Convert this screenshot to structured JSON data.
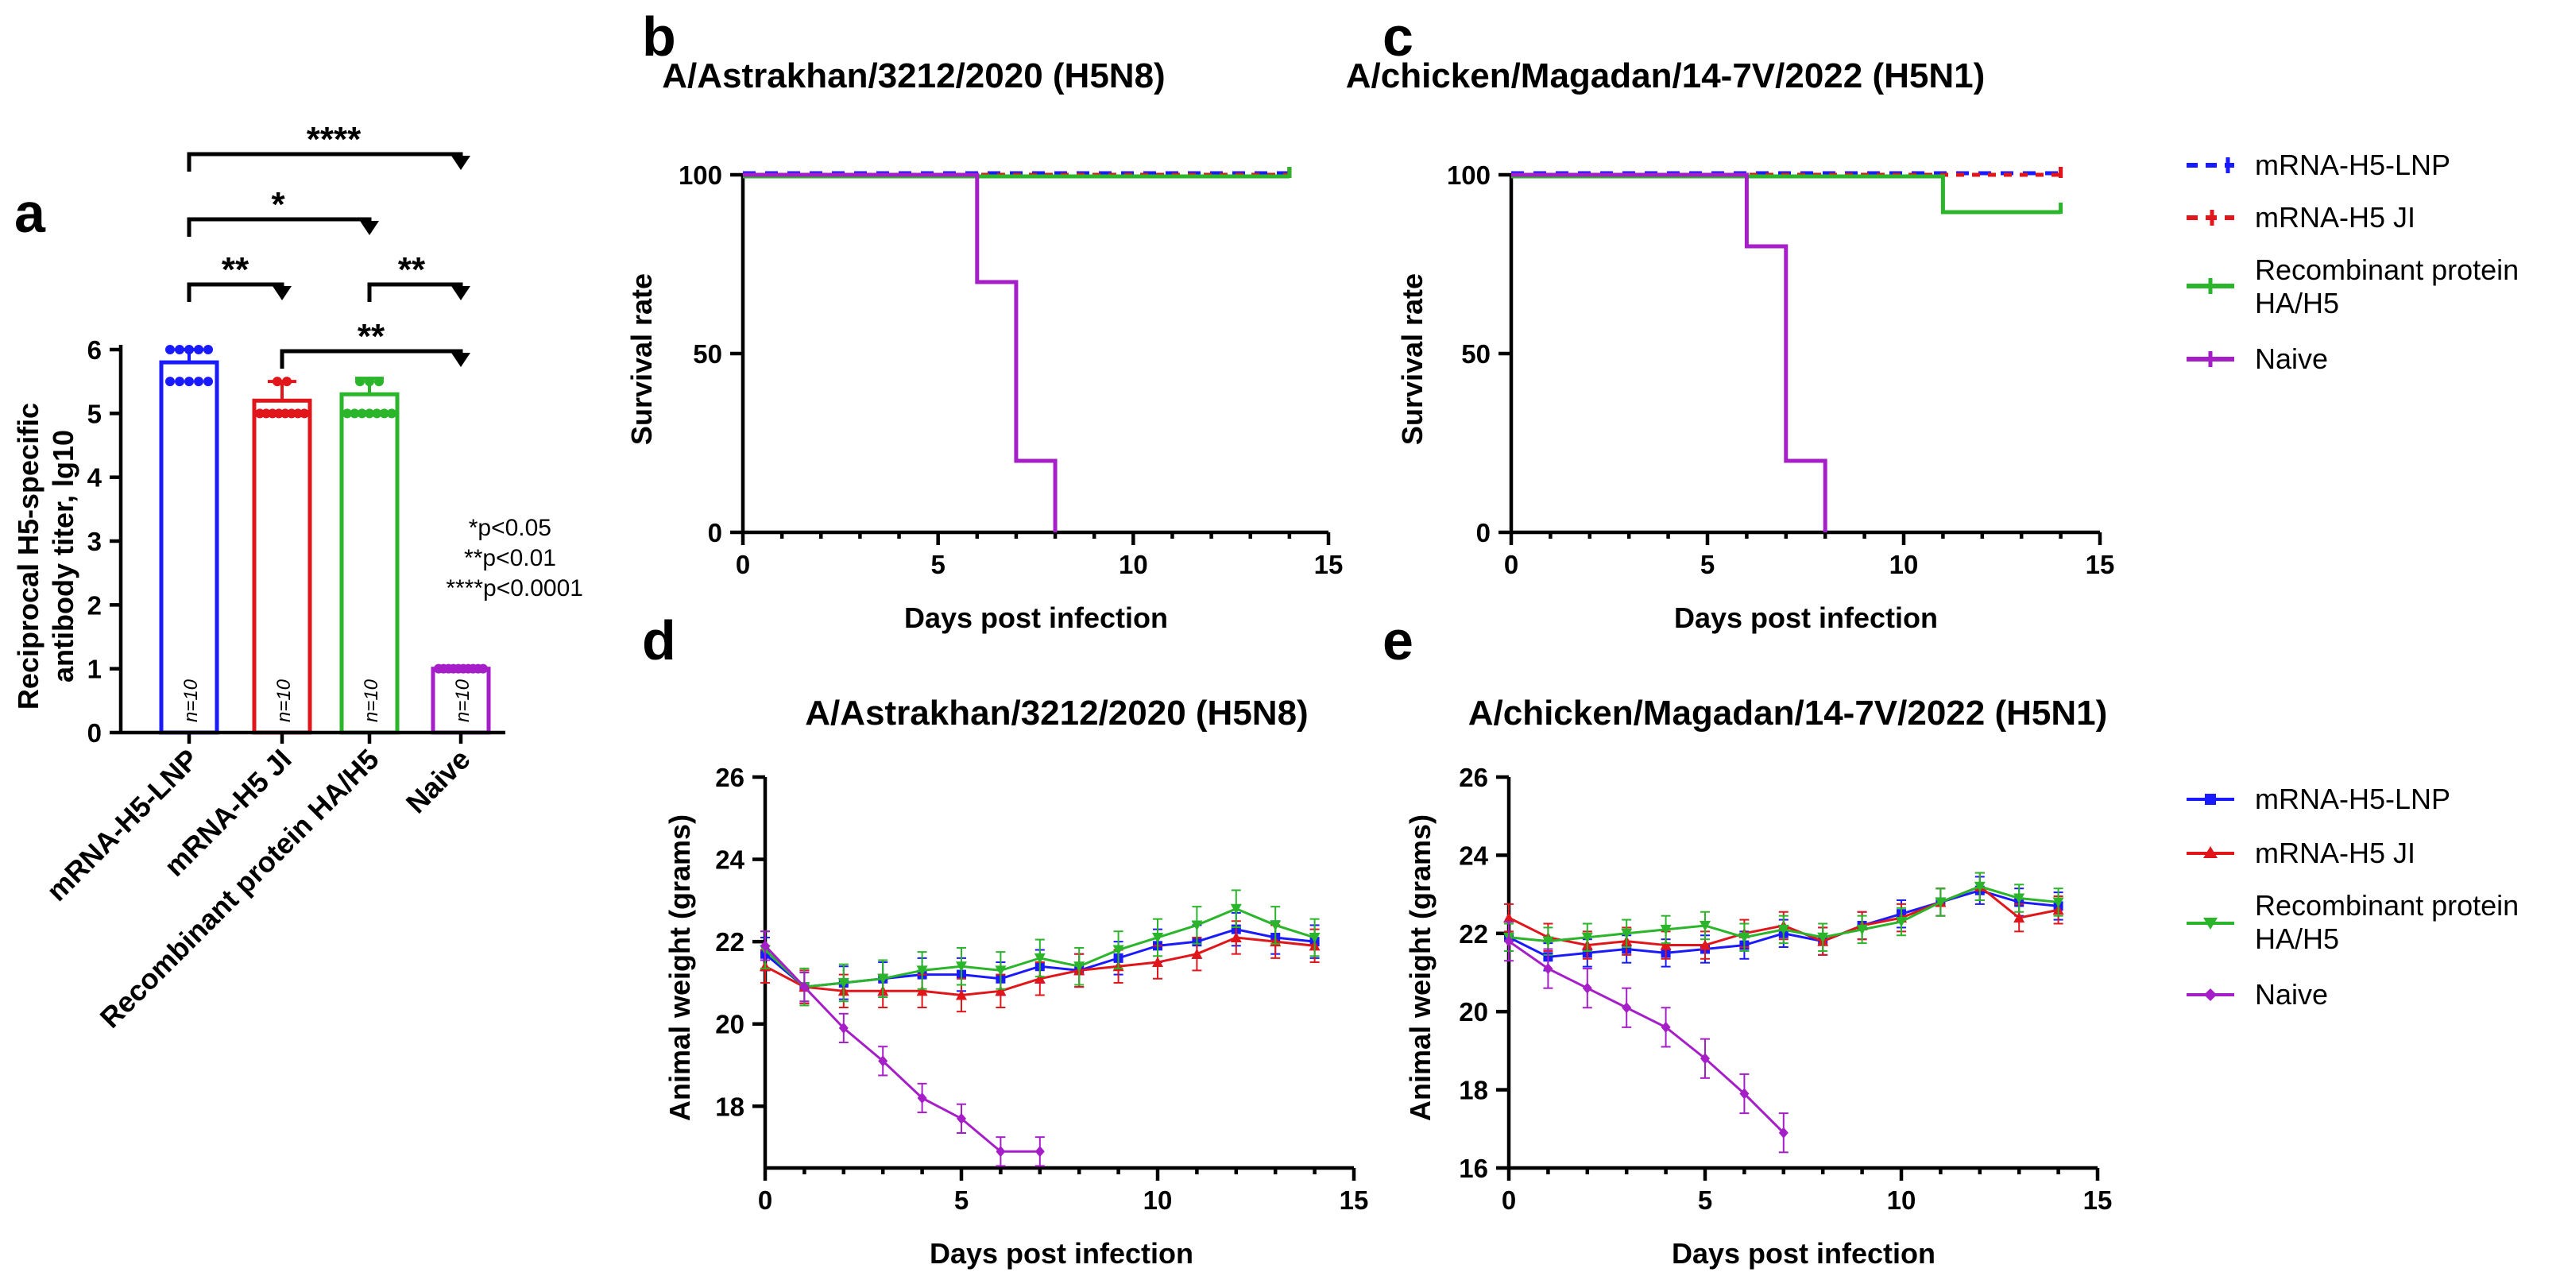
{
  "panel_labels": {
    "a": "a",
    "b": "b",
    "c": "c",
    "d": "d",
    "e": "e"
  },
  "colors": {
    "LNP": "#1a1aff",
    "JI": "#e0161b",
    "RP": "#2ab52a",
    "Naive": "#a51ec7",
    "axis": "#000000"
  },
  "legend_top": [
    "mRNA-H5-LNP",
    "mRNA-H5 JI",
    "Recombinant protein",
    "HA/H5",
    "Naive"
  ],
  "legend_bottom": [
    "mRNA-H5-LNP",
    "mRNA-H5 JI",
    "Recombinant protein",
    "HA/H5",
    "Naive"
  ],
  "sig_labels": {
    "s1": "****",
    "s2": "*",
    "s3": "**",
    "s4": "**",
    "s5": "**"
  },
  "p_notes": {
    "l1": "*p<0.05",
    "l2": "**p<0.01",
    "l3": "****p<0.0001"
  },
  "chart_data": [
    {
      "panel": "a",
      "type": "bar",
      "categories": [
        "mRNA-H5-LNP",
        "mRNA-H5 JI",
        "Recombinant protein HA/H5",
        "Naive"
      ],
      "values": [
        5.8,
        5.2,
        5.3,
        1.0
      ],
      "errors": [
        0.2,
        0.3,
        0.25,
        0.0
      ],
      "n_labels": [
        "n=10",
        "n=10",
        "n=10",
        "n=10"
      ],
      "points": [
        [
          6.0,
          6.0,
          6.0,
          6.0,
          6.0,
          5.5,
          5.5,
          5.5,
          5.5,
          5.5
        ],
        [
          5.5,
          5.5,
          5.0,
          5.0,
          5.0,
          5.0,
          5.0,
          5.0,
          5.0,
          5.0
        ],
        [
          5.5,
          5.5,
          5.5,
          5.0,
          5.0,
          5.0,
          5.0,
          5.0,
          5.0,
          5.0
        ],
        [
          1.0,
          1.0,
          1.0,
          1.0,
          1.0,
          1.0,
          1.0,
          1.0,
          1.0,
          1.0
        ]
      ],
      "ylabel": "Reciprocal H5-specific antibody titer, lg10",
      "ylabel_lines": [
        "Reciprocal H5-specific",
        "antibody titer, lg10"
      ],
      "ylim": [
        0,
        6
      ],
      "yticks": [
        "0",
        "1",
        "2",
        "3",
        "4",
        "5",
        "6"
      ]
    },
    {
      "panel": "b",
      "type": "line",
      "subtype": "survival",
      "title": "A/Astrakhan/3212/2020 (H5N8)",
      "xlabel": "Days post infection",
      "ylabel": "Survival rate",
      "xlim": [
        0,
        15
      ],
      "ylim": [
        0,
        100
      ],
      "xticks": [
        "0",
        "5",
        "10",
        "15"
      ],
      "yticks": [
        "0",
        "50",
        "100"
      ],
      "series": [
        {
          "name": "mRNA-H5-LNP",
          "x": [
            0,
            14
          ],
          "y": [
            100,
            100
          ]
        },
        {
          "name": "mRNA-H5 JI",
          "x": [
            0,
            14
          ],
          "y": [
            100,
            100
          ]
        },
        {
          "name": "Recombinant protein HA/H5",
          "x": [
            0,
            14
          ],
          "y": [
            100,
            100
          ]
        },
        {
          "name": "Naive",
          "x": [
            0,
            6,
            6,
            7,
            7,
            8,
            8
          ],
          "y": [
            100,
            100,
            70,
            70,
            20,
            20,
            0
          ]
        }
      ]
    },
    {
      "panel": "c",
      "type": "line",
      "subtype": "survival",
      "title": "A/chicken/Magadan/14-7V/2022 (H5N1)",
      "xlabel": "Days post infection",
      "ylabel": "Survival rate",
      "xlim": [
        0,
        15
      ],
      "ylim": [
        0,
        100
      ],
      "xticks": [
        "0",
        "5",
        "10",
        "15"
      ],
      "yticks": [
        "0",
        "50",
        "100"
      ],
      "series": [
        {
          "name": "mRNA-H5-LNP",
          "x": [
            0,
            14
          ],
          "y": [
            100,
            100
          ]
        },
        {
          "name": "mRNA-H5 JI",
          "x": [
            0,
            14
          ],
          "y": [
            100,
            100
          ]
        },
        {
          "name": "Recombinant protein HA/H5",
          "x": [
            0,
            11,
            11,
            14
          ],
          "y": [
            100,
            100,
            90,
            90
          ]
        },
        {
          "name": "Naive",
          "x": [
            0,
            6,
            6,
            7,
            7,
            8,
            8
          ],
          "y": [
            100,
            100,
            80,
            80,
            20,
            20,
            0
          ]
        }
      ]
    },
    {
      "panel": "d",
      "type": "line",
      "title": "A/Astrakhan/3212/2020 (H5N8)",
      "xlabel": "Days post infection",
      "ylabel": "Animal weight (grams)",
      "xlim": [
        0,
        15
      ],
      "ylim": [
        16.5,
        26
      ],
      "xticks": [
        "0",
        "5",
        "10",
        "15"
      ],
      "yticks": [
        "18",
        "20",
        "22",
        "24",
        "26"
      ],
      "series": [
        {
          "name": "mRNA-H5-LNP",
          "x": [
            0,
            1,
            2,
            3,
            4,
            5,
            6,
            7,
            8,
            9,
            10,
            11,
            12,
            13,
            14
          ],
          "y": [
            21.7,
            20.9,
            21.0,
            21.1,
            21.2,
            21.2,
            21.1,
            21.4,
            21.3,
            21.6,
            21.9,
            22.0,
            22.3,
            22.1,
            22.0
          ],
          "err": 0.4
        },
        {
          "name": "mRNA-H5 JI",
          "x": [
            0,
            1,
            2,
            3,
            4,
            5,
            6,
            7,
            8,
            9,
            10,
            11,
            12,
            13,
            14
          ],
          "y": [
            21.4,
            20.9,
            20.8,
            20.8,
            20.8,
            20.7,
            20.8,
            21.1,
            21.3,
            21.4,
            21.5,
            21.7,
            22.1,
            22.0,
            21.9
          ],
          "err": 0.4
        },
        {
          "name": "Recombinant protein HA/H5",
          "x": [
            0,
            1,
            2,
            3,
            4,
            5,
            6,
            7,
            8,
            9,
            10,
            11,
            12,
            13,
            14
          ],
          "y": [
            21.8,
            20.9,
            21.0,
            21.1,
            21.3,
            21.4,
            21.3,
            21.6,
            21.4,
            21.8,
            22.1,
            22.4,
            22.8,
            22.4,
            22.1
          ],
          "err": 0.45
        },
        {
          "name": "Naive",
          "x": [
            0,
            1,
            2,
            3,
            4,
            5,
            6,
            7
          ],
          "y": [
            21.9,
            20.9,
            19.9,
            19.1,
            18.2,
            17.7,
            16.9,
            16.9
          ],
          "err": 0.35
        }
      ]
    },
    {
      "panel": "e",
      "type": "line",
      "title": "A/chicken/Magadan/14-7V/2022 (H5N1)",
      "xlabel": "Days post infection",
      "ylabel": "Animal weight (grams)",
      "xlim": [
        0,
        15
      ],
      "ylim": [
        16,
        26
      ],
      "xticks": [
        "0",
        "5",
        "10",
        "15"
      ],
      "yticks": [
        "16",
        "18",
        "20",
        "22",
        "24",
        "26"
      ],
      "series": [
        {
          "name": "mRNA-H5-LNP",
          "x": [
            0,
            1,
            2,
            3,
            4,
            5,
            6,
            7,
            8,
            9,
            10,
            11,
            12,
            13,
            14
          ],
          "y": [
            21.9,
            21.4,
            21.5,
            21.6,
            21.5,
            21.6,
            21.7,
            22.0,
            21.8,
            22.2,
            22.5,
            22.8,
            23.1,
            22.8,
            22.7
          ],
          "err": 0.35
        },
        {
          "name": "mRNA-H5 JI",
          "x": [
            0,
            1,
            2,
            3,
            4,
            5,
            6,
            7,
            8,
            9,
            10,
            11,
            12,
            13,
            14
          ],
          "y": [
            22.4,
            21.9,
            21.7,
            21.8,
            21.7,
            21.7,
            22.0,
            22.2,
            21.8,
            22.2,
            22.4,
            22.8,
            23.2,
            22.4,
            22.6
          ],
          "err": 0.35
        },
        {
          "name": "Recombinant protein HA/H5",
          "x": [
            0,
            1,
            2,
            3,
            4,
            5,
            6,
            7,
            8,
            9,
            10,
            11,
            12,
            13,
            14
          ],
          "y": [
            21.9,
            21.8,
            21.9,
            22.0,
            22.1,
            22.2,
            21.9,
            22.1,
            21.9,
            22.1,
            22.3,
            22.8,
            23.2,
            22.9,
            22.8
          ],
          "err": 0.35
        },
        {
          "name": "Naive",
          "x": [
            0,
            1,
            2,
            3,
            4,
            5,
            6,
            7
          ],
          "y": [
            21.8,
            21.1,
            20.6,
            20.1,
            19.6,
            18.8,
            17.9,
            16.9
          ],
          "err": 0.5
        }
      ]
    }
  ]
}
